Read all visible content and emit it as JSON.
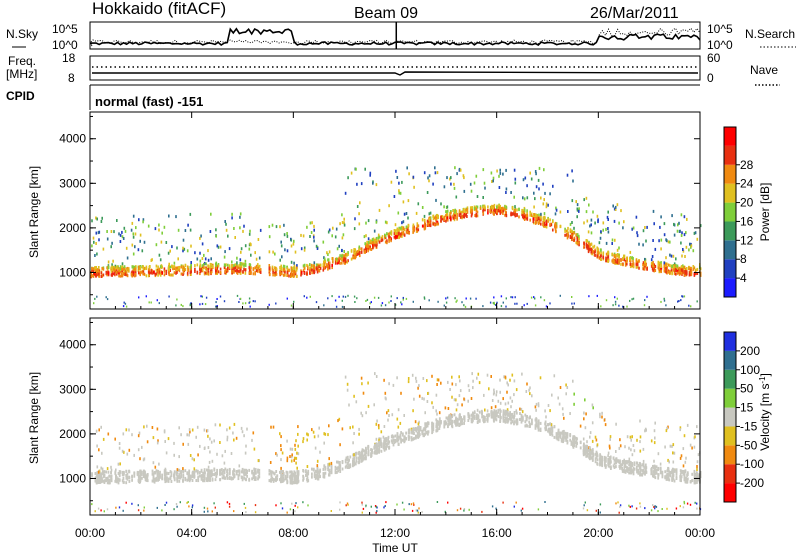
{
  "header": {
    "station": "Hokkaido (fitACF)",
    "beam": "Beam 09",
    "date": "26/Mar/2011"
  },
  "top_panels": {
    "left_label_1": "N.Sky",
    "left_label_2": "Freq.",
    "left_label_3": "[MHz]",
    "left_label_4": "CPID",
    "right_label_1": "N.Search",
    "right_label_2": "Nave",
    "nsky_tick_top": "10^5",
    "nsky_tick_bottom": "10^0",
    "freq_tick_top": "18",
    "freq_tick_bottom": "8",
    "nave_tick_top": "60",
    "nave_tick_bottom": "0",
    "cpid_text": "normal (fast) -151"
  },
  "chart_data": [
    {
      "type": "heatmap",
      "name": "power",
      "xlabel": "Time UT",
      "ylabel": "Slant Range [km]",
      "xlim": [
        0,
        24
      ],
      "ylim": [
        180,
        4600
      ],
      "yticks": [
        "1000",
        "2000",
        "3000",
        "4000"
      ],
      "colorbar_label": "Power [dB]",
      "colorbar_ticks": [
        "4",
        "8",
        "12",
        "16",
        "20",
        "24",
        "28"
      ],
      "colors": [
        "#1c1cff",
        "#2040c0",
        "#2f6f8f",
        "#3c9a5a",
        "#7fce3a",
        "#e0c020",
        "#f08a10",
        "#e83010",
        "#ff0000"
      ],
      "bands": [
        {
          "t": [
            0,
            2,
            4,
            5,
            6,
            7,
            8,
            9,
            10,
            11,
            12,
            13,
            14,
            15,
            16,
            17,
            18,
            19,
            20,
            21,
            22,
            23,
            24
          ],
          "r": [
            1000,
            1020,
            1050,
            1070,
            1080,
            1050,
            1000,
            1100,
            1300,
            1600,
            1850,
            2050,
            2250,
            2350,
            2400,
            2300,
            2100,
            1800,
            1400,
            1250,
            1150,
            1050,
            1000
          ],
          "level": 8
        }
      ]
    },
    {
      "type": "heatmap",
      "name": "velocity",
      "xlabel": "Time UT",
      "ylabel": "Slant Range [km]",
      "xlim": [
        0,
        24
      ],
      "ylim": [
        180,
        4600
      ],
      "yticks": [
        "1000",
        "2000",
        "3000",
        "4000"
      ],
      "xticks": [
        "00:00",
        "04:00",
        "08:00",
        "12:00",
        "16:00",
        "20:00",
        "00:00"
      ],
      "colorbar_label": "Velocity [m s^-1]",
      "colorbar_ticks": [
        "200",
        "100",
        "50",
        "15",
        "-15",
        "-50",
        "-100",
        "-200"
      ],
      "colors": [
        "#2030e0",
        "#2f6f8f",
        "#3c9a5a",
        "#7fce3a",
        "#c8c8c0",
        "#e0c020",
        "#f08a10",
        "#e83010",
        "#ff0000"
      ]
    }
  ]
}
